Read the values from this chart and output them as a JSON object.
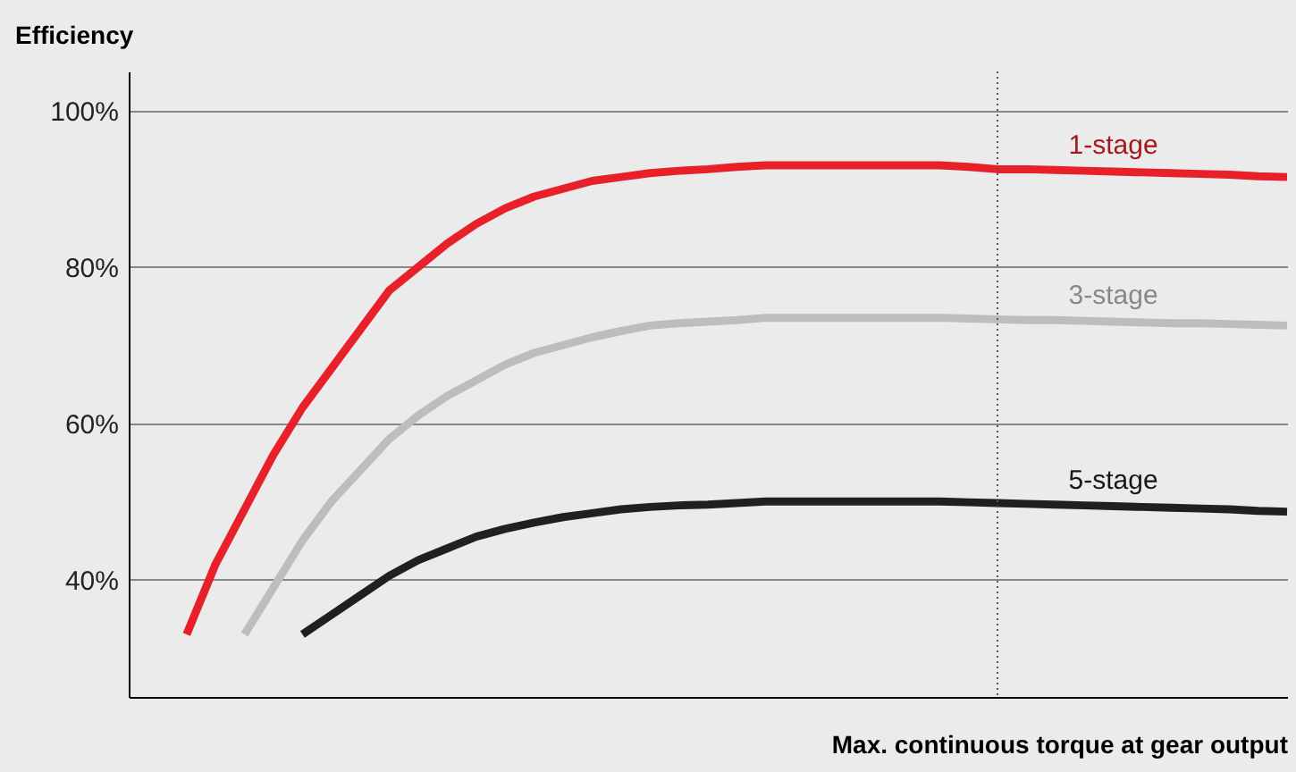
{
  "chart_data": {
    "type": "line",
    "xlabel": "Max. continuous torque at gear output",
    "ylabel": "Efficiency",
    "categories": [
      null,
      null,
      null,
      null,
      null,
      null,
      null,
      null,
      null,
      null,
      null,
      null,
      null,
      null,
      null,
      null,
      null,
      null,
      null,
      null,
      null,
      null,
      null,
      null,
      null,
      null,
      null,
      null,
      null,
      null,
      null,
      null,
      null,
      null,
      null,
      null,
      null,
      null,
      null,
      null,
      null
    ],
    "series": [
      {
        "name": "1-stage",
        "color": "#e8202a",
        "values": [
          null,
          null,
          33,
          42,
          49,
          56,
          62,
          67,
          72,
          77,
          80,
          83,
          85.5,
          87.5,
          89,
          90,
          91,
          91.5,
          92,
          92.3,
          92.5,
          92.8,
          93,
          93,
          93,
          93,
          93,
          93,
          93,
          92.8,
          92.5,
          92.5,
          92.4,
          92.3,
          92.2,
          92.1,
          92,
          91.9,
          91.8,
          91.6,
          91.5
        ]
      },
      {
        "name": "3-stage",
        "color": "#bdbdbd",
        "values": [
          null,
          null,
          null,
          null,
          33,
          39,
          45,
          50,
          54,
          58,
          61,
          63.5,
          65.5,
          67.5,
          69,
          70,
          71,
          71.8,
          72.5,
          72.8,
          73,
          73.2,
          73.5,
          73.5,
          73.5,
          73.5,
          73.5,
          73.5,
          73.5,
          73.4,
          73.3,
          73.2,
          73.2,
          73.1,
          73,
          72.9,
          72.8,
          72.8,
          72.7,
          72.6,
          72.5
        ]
      },
      {
        "name": "5-stage",
        "color": "#231f20",
        "values": [
          null,
          null,
          null,
          null,
          null,
          null,
          33,
          35.5,
          38,
          40.5,
          42.5,
          44,
          45.5,
          46.5,
          47.3,
          48,
          48.5,
          49,
          49.3,
          49.5,
          49.6,
          49.8,
          50,
          50,
          50,
          50,
          50,
          50,
          50,
          49.9,
          49.8,
          49.7,
          49.6,
          49.5,
          49.4,
          49.3,
          49.2,
          49.1,
          49,
          48.8,
          48.7
        ]
      }
    ],
    "ylim": [
      25,
      105
    ],
    "yticks": [
      {
        "value": 40,
        "label": "40%"
      },
      {
        "value": 60,
        "label": "60%"
      },
      {
        "value": 80,
        "label": "80%"
      },
      {
        "value": 100,
        "label": "100%"
      }
    ],
    "grid": "y",
    "legend": false,
    "marker": "none",
    "line_style": "solid"
  }
}
